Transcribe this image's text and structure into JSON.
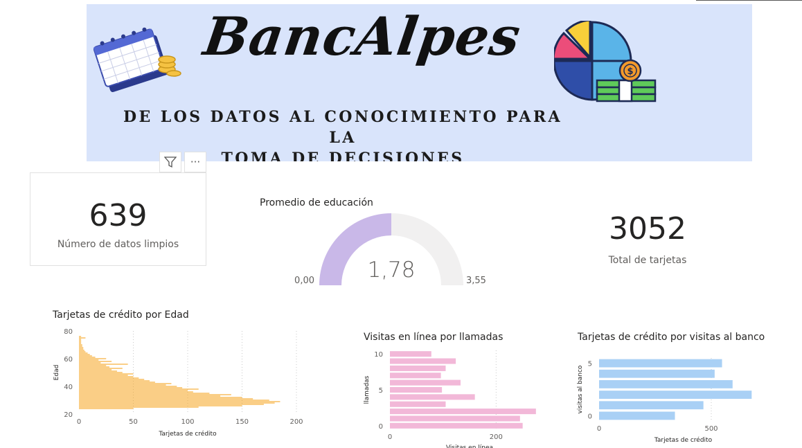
{
  "banner": {
    "brand": "BancAlpes",
    "tagline_line1": "DE LOS DATOS AL CONOCIMIENTO PARA LA",
    "tagline_line2": "TOMA DE DECISIONES",
    "background": "#d9e4fb"
  },
  "visual_header": {
    "filter_icon": "filter-icon",
    "more_icon": "more-options-icon",
    "more_glyph": "···"
  },
  "kpi_clean": {
    "value": "639",
    "label": "Número de datos limpios"
  },
  "gauge": {
    "title": "Promedio de educación",
    "value_label": "1,78",
    "min_label": "0,00",
    "max_label": "3,55",
    "fill_fraction": 0.5,
    "fill_color": "#c9b8e8",
    "track_color": "#f1f0f0"
  },
  "kpi_cards": {
    "value": "3052",
    "label": "Total de tarjetas"
  },
  "chart_data": [
    {
      "type": "bar",
      "orientation": "horizontal",
      "title": "Tarjetas de crédito por Edad",
      "xlabel": "Tarjetas de crédito",
      "ylabel": "Edad",
      "xlim": [
        0,
        200
      ],
      "ylim": [
        20,
        80
      ],
      "xticks": [
        "0",
        "50",
        "100",
        "150",
        "200"
      ],
      "yticks": [
        "20",
        "40",
        "60",
        "80"
      ],
      "color": "#f5a623",
      "grid": "vertical",
      "categories": [
        24,
        25,
        26,
        27,
        28,
        29,
        30,
        31,
        32,
        33,
        34,
        35,
        36,
        37,
        38,
        39,
        40,
        41,
        42,
        43,
        44,
        45,
        46,
        47,
        48,
        49,
        50,
        51,
        52,
        53,
        54,
        55,
        56,
        57,
        58,
        59,
        60,
        61,
        62,
        63,
        64,
        65,
        66,
        67,
        68,
        69,
        70,
        71,
        72,
        73,
        74,
        75,
        76
      ],
      "values": [
        50,
        110,
        150,
        170,
        180,
        185,
        175,
        160,
        150,
        130,
        140,
        120,
        105,
        100,
        110,
        95,
        90,
        80,
        85,
        70,
        65,
        60,
        55,
        50,
        45,
        50,
        40,
        35,
        30,
        40,
        28,
        25,
        45,
        20,
        30,
        18,
        25,
        15,
        12,
        10,
        8,
        6,
        5,
        4,
        4,
        3,
        3,
        2,
        2,
        2,
        2,
        6,
        2
      ]
    },
    {
      "type": "bar",
      "orientation": "horizontal",
      "title": "Visitas en línea por llamadas",
      "xlabel": "Visitas en línea",
      "ylabel": "llamadas",
      "xlim": [
        0,
        300
      ],
      "ylim": [
        -0.5,
        10.5
      ],
      "xticks": [
        "0",
        "200"
      ],
      "yticks": [
        "0",
        "5",
        "10"
      ],
      "color": "#f2b8d8",
      "grid": "vertical",
      "categories": [
        0,
        1,
        2,
        3,
        4,
        5,
        6,
        7,
        8,
        9,
        10
      ],
      "values": [
        250,
        245,
        275,
        105,
        160,
        98,
        133,
        96,
        105,
        124,
        78
      ]
    },
    {
      "type": "bar",
      "orientation": "horizontal",
      "title": "Tarjetas de crédito por visitas al banco",
      "xlabel": "Tarjetas de crédito",
      "ylabel": "visitas al banco",
      "xlim": [
        0,
        750
      ],
      "ylim": [
        -0.5,
        5.5
      ],
      "xticks": [
        "0",
        "500"
      ],
      "yticks": [
        "0",
        "5"
      ],
      "color": "#a9d0f5",
      "grid": "vertical",
      "categories": [
        0,
        1,
        2,
        3,
        4,
        5
      ],
      "values": [
        338,
        465,
        680,
        595,
        515,
        548
      ]
    }
  ]
}
